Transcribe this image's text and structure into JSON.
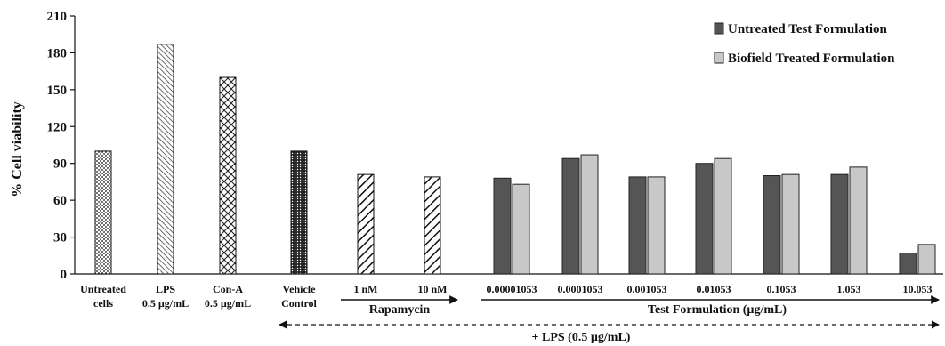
{
  "chart_data": {
    "type": "bar",
    "ylabel": "% Cell viability",
    "ylim": [
      0,
      210
    ],
    "yticks": [
      0,
      30,
      60,
      90,
      120,
      150,
      180,
      210
    ],
    "legend_position": "top-right",
    "legend": [
      {
        "name": "Untreated Test Formulation",
        "color": "#555555"
      },
      {
        "name": "Biofield Treated Formulation",
        "color": "#c8c8c8"
      }
    ],
    "controls": [
      {
        "line1": "Untreated",
        "line2": "cells",
        "value": 100,
        "pattern": "dots"
      },
      {
        "line1": "LPS",
        "line2": "0.5 µg/mL",
        "value": 187,
        "pattern": "hatch-light"
      },
      {
        "line1": "Con-A",
        "line2": "0.5 µg/mL",
        "value": 160,
        "pattern": "lattice"
      },
      {
        "line1": "Vehicle",
        "line2": "Control",
        "value": 100,
        "pattern": "dense"
      },
      {
        "line1": "1 nM",
        "line2": "",
        "value": 81,
        "pattern": "hatch-bold"
      },
      {
        "line1": "10 nM",
        "line2": "",
        "value": 79,
        "pattern": "hatch-bold"
      }
    ],
    "test_categories": [
      "0.00001053",
      "0.0001053",
      "0.001053",
      "0.01053",
      "0.1053",
      "1.053",
      "10.053"
    ],
    "series": [
      {
        "name": "Untreated Test Formulation",
        "values": [
          78,
          94,
          79,
          90,
          80,
          81,
          17
        ]
      },
      {
        "name": "Biofield Treated Formulation",
        "values": [
          73,
          97,
          79,
          94,
          81,
          87,
          24
        ]
      }
    ],
    "group_labels": {
      "rapamycin": "Rapamycin",
      "test_formulation": "Test Formulation (µg/mL)",
      "lps": "+ LPS (0.5 µg/mL)"
    }
  }
}
